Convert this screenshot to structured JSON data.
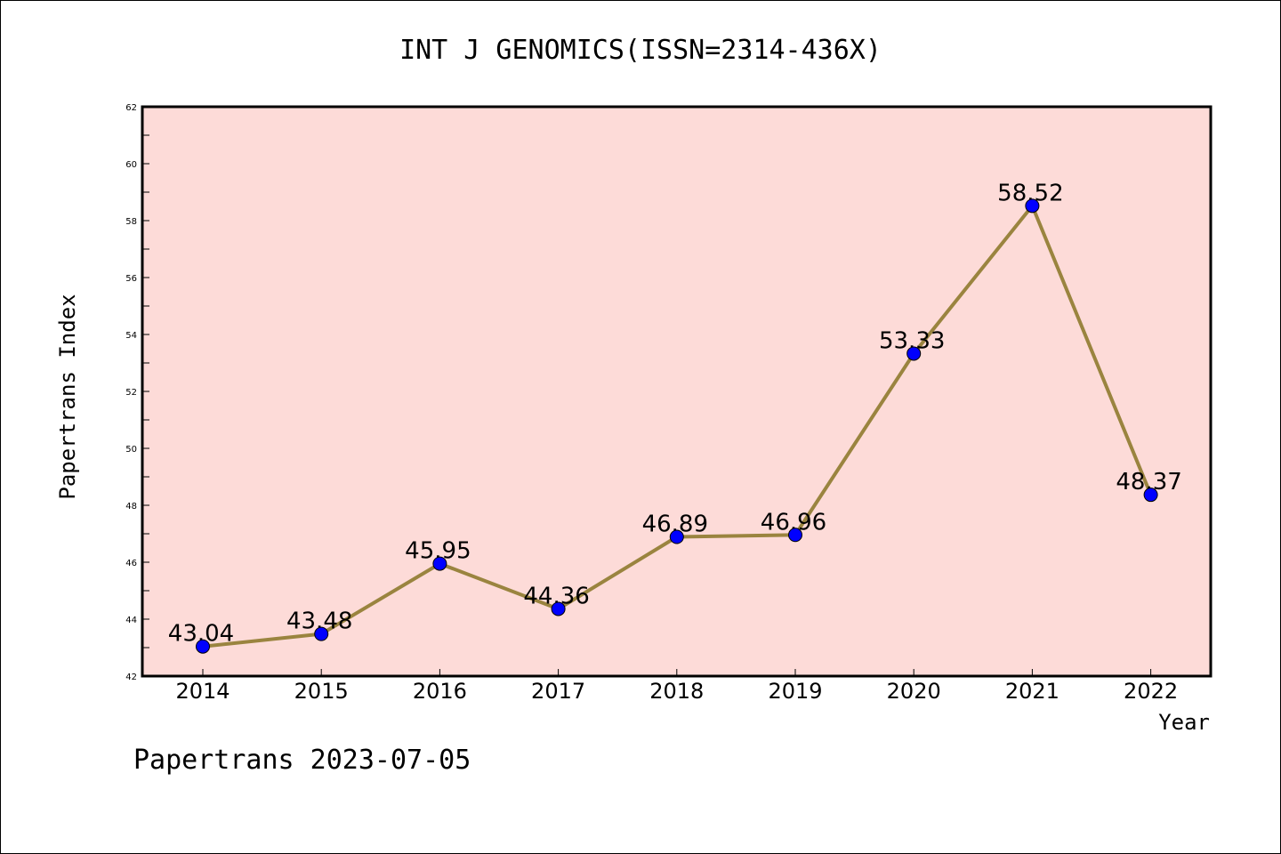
{
  "chart_data": {
    "type": "line",
    "title": "INT J GENOMICS(ISSN=2314-436X)",
    "xlabel": "Year",
    "ylabel": "Papertrans Index",
    "categories": [
      "2014",
      "2015",
      "2016",
      "2017",
      "2018",
      "2019",
      "2020",
      "2021",
      "2022"
    ],
    "series": [
      {
        "values": [
          43.04,
          43.48,
          45.95,
          44.36,
          46.89,
          46.96,
          53.33,
          58.52,
          48.37
        ],
        "labels": [
          "43.04",
          "43.48",
          "45.95",
          "44.36",
          "46.89",
          "46.96",
          "53.33",
          "58.52",
          "48.37"
        ]
      }
    ],
    "ylim": [
      42,
      62
    ],
    "yticks": [
      "42",
      "44",
      "46",
      "48",
      "50",
      "52",
      "54",
      "56",
      "58",
      "60",
      "62"
    ],
    "grid": false,
    "legend": "none",
    "colors": {
      "plot_background": "#fddbd8",
      "line": "#9a843f",
      "marker": "#0000ff"
    }
  },
  "footer": "Papertrans 2023-07-05"
}
